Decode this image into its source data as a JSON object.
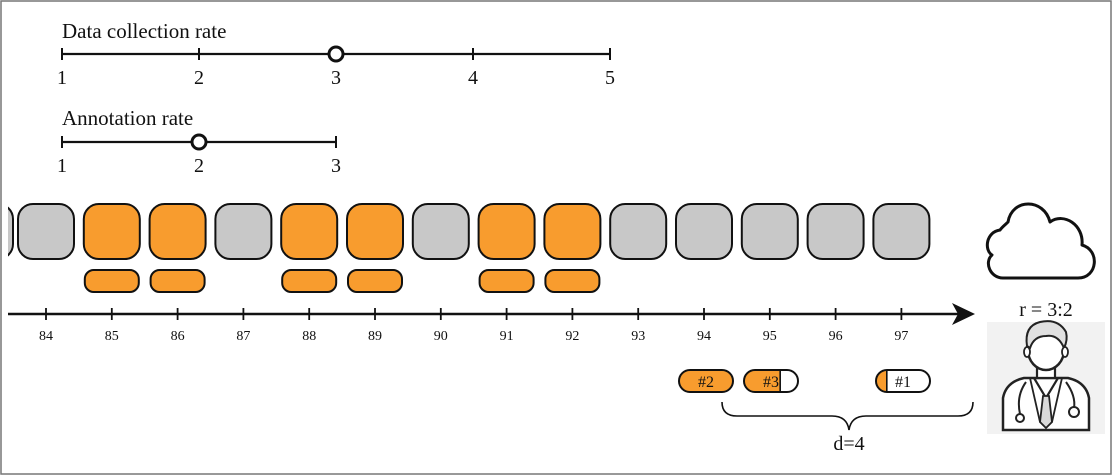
{
  "data_collection": {
    "title": "Data collection rate",
    "ticks": [
      "1",
      "2",
      "3",
      "4",
      "5"
    ],
    "selected_index": 2
  },
  "annotation": {
    "title": "Annotation rate",
    "ticks": [
      "1",
      "2",
      "3"
    ],
    "selected_index": 1
  },
  "timeline": {
    "labels": [
      "84",
      "85",
      "86",
      "87",
      "88",
      "89",
      "90",
      "91",
      "92",
      "93",
      "94",
      "95",
      "96",
      "97"
    ],
    "frames": [
      "gray",
      "orange",
      "orange",
      "gray",
      "orange",
      "orange",
      "gray",
      "orange",
      "orange",
      "gray",
      "gray",
      "gray",
      "gray",
      "gray"
    ],
    "annotated": [
      false,
      true,
      true,
      false,
      true,
      true,
      false,
      true,
      true,
      false,
      false,
      false,
      false,
      false
    ]
  },
  "queue": [
    {
      "label": "#2",
      "fill": 1.0
    },
    {
      "label": "#3",
      "fill": 0.67
    },
    {
      "label": "#1",
      "fill": 0.2
    }
  ],
  "ratio_label": "r = 3:2",
  "delay_label": "d=4",
  "colors": {
    "orange": "#F89C2E",
    "gray": "#C8C8C8",
    "outline": "#111111"
  },
  "icons": {
    "cloud": "cloud-icon",
    "annotator": "doctor-icon"
  }
}
